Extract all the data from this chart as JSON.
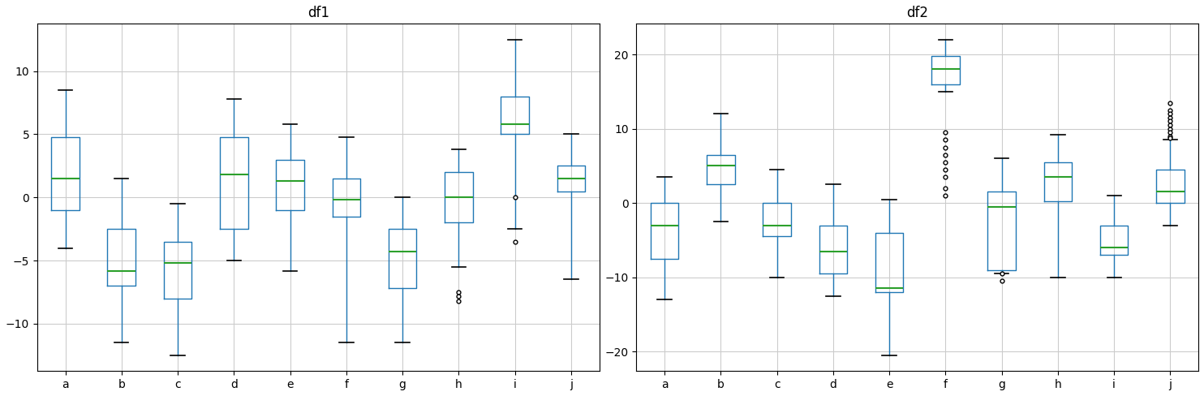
{
  "title1": "df1",
  "title2": "df2",
  "categories": [
    "a",
    "b",
    "c",
    "d",
    "e",
    "f",
    "g",
    "h",
    "i",
    "j"
  ],
  "df1": {
    "a": {
      "whislo": -4.0,
      "q1": -1.0,
      "med": 1.5,
      "q3": 4.8,
      "whishi": 8.5,
      "fliers": []
    },
    "b": {
      "whislo": -11.5,
      "q1": -7.0,
      "med": -5.8,
      "q3": -2.5,
      "whishi": 1.5,
      "fliers": []
    },
    "c": {
      "whislo": -12.5,
      "q1": -8.0,
      "med": -5.2,
      "q3": -3.5,
      "whishi": -0.5,
      "fliers": []
    },
    "d": {
      "whislo": -5.0,
      "q1": -2.5,
      "med": 1.8,
      "q3": 4.8,
      "whishi": 7.8,
      "fliers": []
    },
    "e": {
      "whislo": -5.8,
      "q1": -1.0,
      "med": 1.3,
      "q3": 3.0,
      "whishi": 5.8,
      "fliers": []
    },
    "f": {
      "whislo": -11.5,
      "q1": -1.5,
      "med": -0.2,
      "q3": 1.5,
      "whishi": 4.8,
      "fliers": []
    },
    "g": {
      "whislo": -11.5,
      "q1": -7.2,
      "med": -4.3,
      "q3": -2.5,
      "whishi": 0.0,
      "fliers": []
    },
    "h": {
      "whislo": -5.5,
      "q1": -2.0,
      "med": 0.0,
      "q3": 2.0,
      "whishi": 3.8,
      "fliers": [
        -7.5,
        -7.8,
        -8.2
      ]
    },
    "i": {
      "whislo": -2.5,
      "q1": 5.0,
      "med": 5.8,
      "q3": 8.0,
      "whishi": 12.5,
      "fliers": [
        0.0,
        -3.5
      ]
    },
    "j": {
      "whislo": -6.5,
      "q1": 0.5,
      "med": 1.5,
      "q3": 2.5,
      "whishi": 5.0,
      "fliers": []
    }
  },
  "df2": {
    "a": {
      "whislo": -13.0,
      "q1": -7.5,
      "med": -3.0,
      "q3": 0.0,
      "whishi": 3.5,
      "fliers": []
    },
    "b": {
      "whislo": -2.5,
      "q1": 2.5,
      "med": 5.0,
      "q3": 6.5,
      "whishi": 12.0,
      "fliers": []
    },
    "c": {
      "whislo": -10.0,
      "q1": -4.5,
      "med": -3.0,
      "q3": 0.0,
      "whishi": 4.5,
      "fliers": []
    },
    "d": {
      "whislo": -12.5,
      "q1": -9.5,
      "med": -6.5,
      "q3": -3.0,
      "whishi": 2.5,
      "fliers": []
    },
    "e": {
      "whislo": -20.5,
      "q1": -12.0,
      "med": -11.5,
      "q3": -4.0,
      "whishi": 0.5,
      "fliers": []
    },
    "f": {
      "whislo": 15.0,
      "q1": 16.0,
      "med": 18.0,
      "q3": 19.8,
      "whishi": 22.0,
      "fliers": [
        9.5,
        8.5,
        7.5,
        6.5,
        5.5,
        4.5,
        3.5,
        2.0,
        1.0
      ]
    },
    "g": {
      "whislo": -9.5,
      "q1": -9.0,
      "med": -0.5,
      "q3": 1.5,
      "whishi": 6.0,
      "fliers": [
        -9.5,
        -10.5
      ]
    },
    "h": {
      "whislo": -10.0,
      "q1": 0.2,
      "med": 3.5,
      "q3": 5.5,
      "whishi": 9.2,
      "fliers": []
    },
    "i": {
      "whislo": -10.0,
      "q1": -7.0,
      "med": -6.0,
      "q3": -3.0,
      "whishi": 1.0,
      "fliers": []
    },
    "j": {
      "whislo": -3.0,
      "q1": 0.0,
      "med": 1.5,
      "q3": 4.5,
      "whishi": 8.5,
      "fliers": [
        13.5,
        12.5,
        12.0,
        11.5,
        11.0,
        10.5,
        10.0,
        9.5,
        9.0,
        8.8
      ]
    }
  },
  "box_color": "#1f77b4",
  "median_color": "#2ca02c",
  "background_color": "#ffffff",
  "grid_color": "#cccccc",
  "figsize": [
    14.84,
    4.88
  ],
  "dpi": 100
}
